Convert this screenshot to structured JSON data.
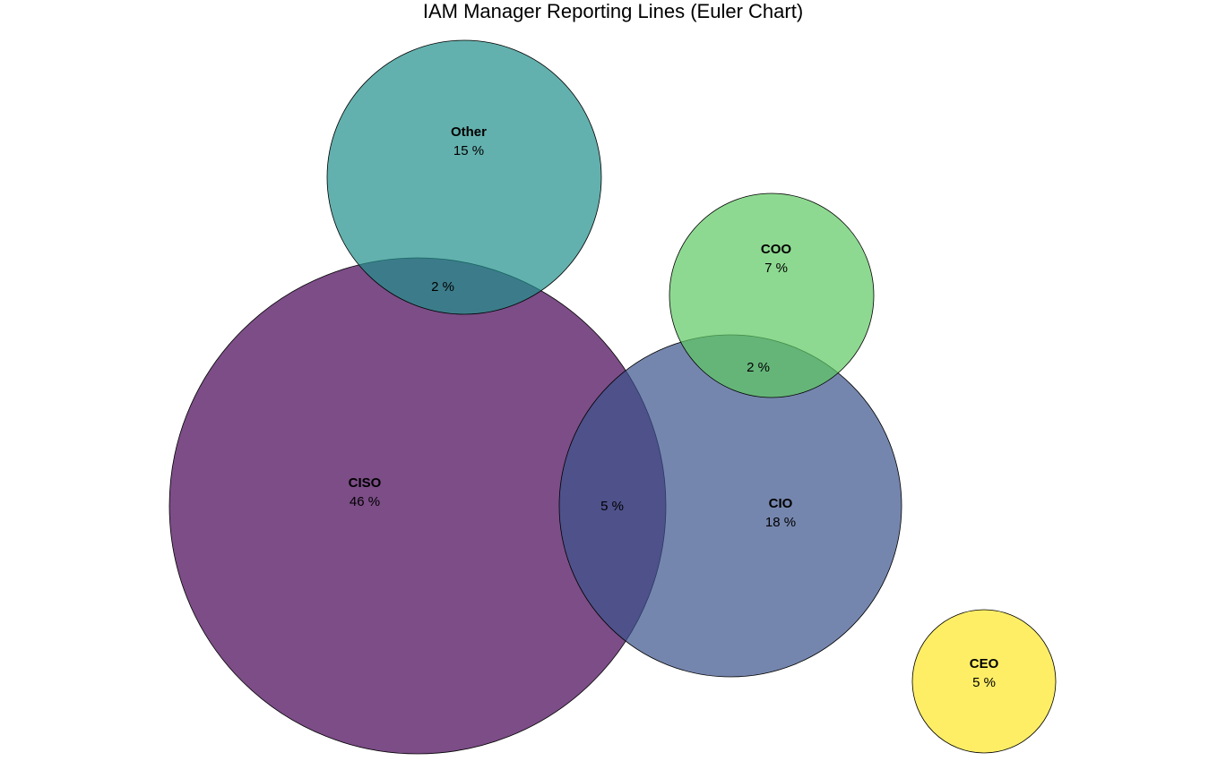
{
  "chart_data": {
    "type": "euler",
    "title": "IAM Manager Reporting Lines (Euler Chart)",
    "sets": [
      {
        "key": "other",
        "name": "Other",
        "value": "15 %",
        "color": "#21908C"
      },
      {
        "key": "ciso",
        "name": "CISO",
        "value": "46 %",
        "color": "#440154"
      },
      {
        "key": "coo",
        "name": "COO",
        "value": "7 %",
        "color": "#5EC962"
      },
      {
        "key": "cio",
        "name": "CIO",
        "value": "18 %",
        "color": "#3B528B"
      },
      {
        "key": "ceo",
        "name": "CEO",
        "value": "5 %",
        "color": "#FDE725"
      }
    ],
    "overlaps": [
      {
        "key": "other-ciso",
        "sets": [
          "Other",
          "CISO"
        ],
        "value": "2 %"
      },
      {
        "key": "coo-cio",
        "sets": [
          "COO",
          "CIO"
        ],
        "value": "2 %"
      },
      {
        "key": "ciso-cio",
        "sets": [
          "CISO",
          "CIO"
        ],
        "value": "5 %"
      }
    ],
    "fill_opacity": 0.7,
    "border_color": "#000000"
  }
}
